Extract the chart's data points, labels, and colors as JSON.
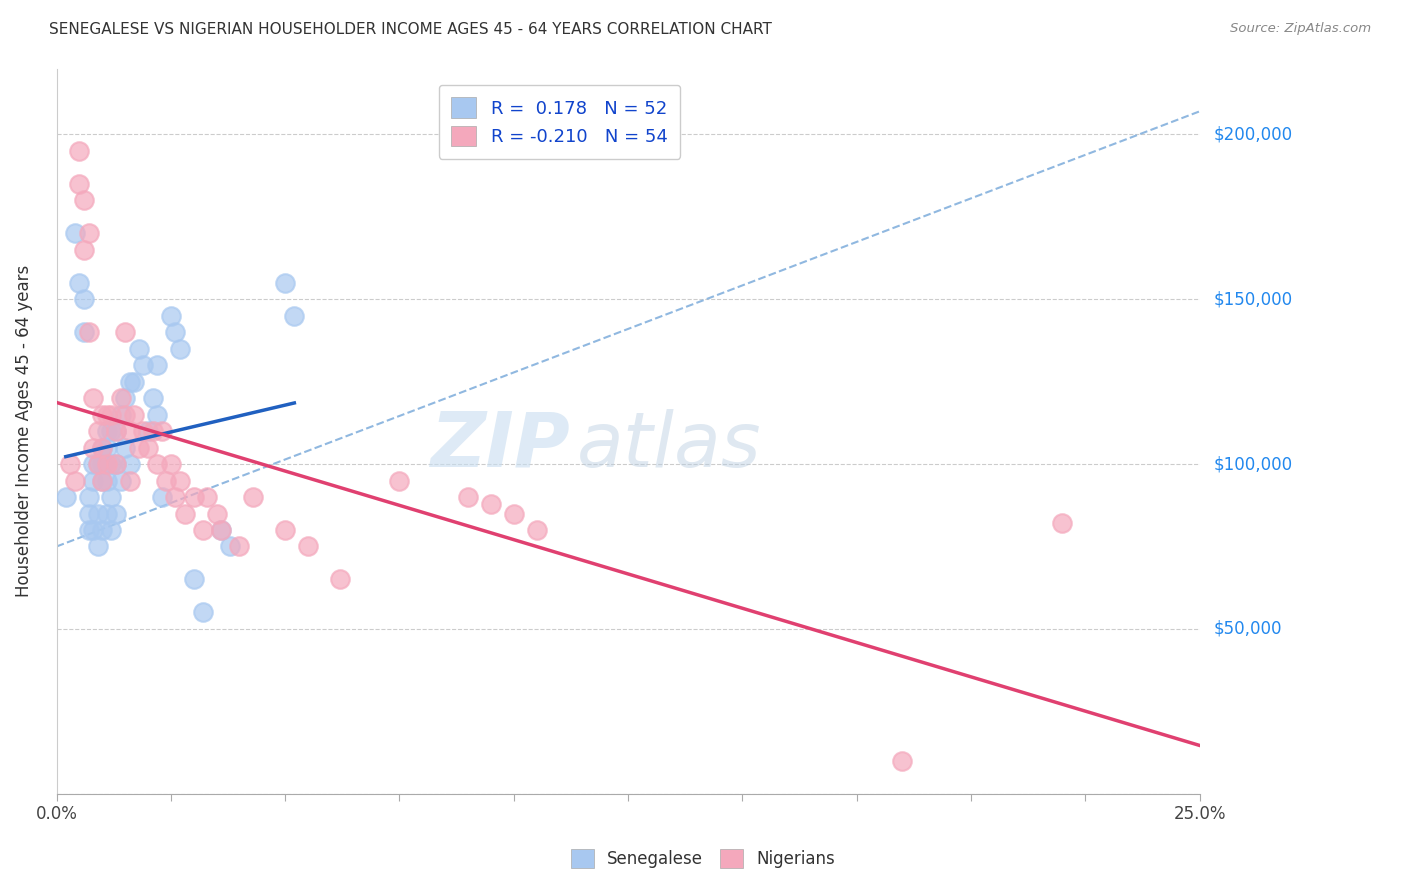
{
  "title": "SENEGALESE VS NIGERIAN HOUSEHOLDER INCOME AGES 45 - 64 YEARS CORRELATION CHART",
  "source": "Source: ZipAtlas.com",
  "ylabel": "Householder Income Ages 45 - 64 years",
  "xlim": [
    0.0,
    0.25
  ],
  "ylim": [
    0,
    220000
  ],
  "ytick_positions": [
    0,
    50000,
    100000,
    150000,
    200000
  ],
  "ytick_labels": [
    "",
    "$50,000",
    "$100,000",
    "$150,000",
    "$200,000"
  ],
  "xtick_positions": [
    0.0,
    0.025,
    0.05,
    0.075,
    0.1,
    0.125,
    0.15,
    0.175,
    0.2,
    0.225,
    0.25
  ],
  "legend_bottom": [
    "Senegalese",
    "Nigerians"
  ],
  "blue_color": "#a8c8f0",
  "pink_color": "#f4a8bc",
  "regression_blue_color": "#2060c0",
  "regression_pink_color": "#e04070",
  "dashed_line_color": "#90b8e0",
  "watermark_zip": "ZIP",
  "watermark_atlas": "atlas",
  "senegalese_x": [
    0.002,
    0.004,
    0.005,
    0.006,
    0.006,
    0.007,
    0.007,
    0.007,
    0.008,
    0.008,
    0.008,
    0.009,
    0.009,
    0.009,
    0.01,
    0.01,
    0.01,
    0.01,
    0.011,
    0.011,
    0.011,
    0.011,
    0.012,
    0.012,
    0.012,
    0.012,
    0.013,
    0.013,
    0.013,
    0.014,
    0.014,
    0.015,
    0.015,
    0.016,
    0.016,
    0.017,
    0.018,
    0.019,
    0.02,
    0.021,
    0.022,
    0.022,
    0.023,
    0.025,
    0.026,
    0.027,
    0.03,
    0.032,
    0.036,
    0.038,
    0.05,
    0.052
  ],
  "senegalese_y": [
    90000,
    170000,
    155000,
    150000,
    140000,
    90000,
    85000,
    80000,
    100000,
    95000,
    80000,
    100000,
    85000,
    75000,
    105000,
    100000,
    95000,
    80000,
    110000,
    105000,
    95000,
    85000,
    110000,
    100000,
    90000,
    80000,
    110000,
    100000,
    85000,
    115000,
    95000,
    120000,
    105000,
    125000,
    100000,
    125000,
    135000,
    130000,
    110000,
    120000,
    130000,
    115000,
    90000,
    145000,
    140000,
    135000,
    65000,
    55000,
    80000,
    75000,
    155000,
    145000
  ],
  "nigerian_x": [
    0.003,
    0.004,
    0.005,
    0.005,
    0.006,
    0.006,
    0.007,
    0.007,
    0.008,
    0.008,
    0.009,
    0.009,
    0.01,
    0.01,
    0.01,
    0.011,
    0.011,
    0.012,
    0.013,
    0.013,
    0.014,
    0.015,
    0.015,
    0.016,
    0.016,
    0.017,
    0.018,
    0.019,
    0.02,
    0.021,
    0.022,
    0.023,
    0.024,
    0.025,
    0.026,
    0.027,
    0.028,
    0.03,
    0.032,
    0.033,
    0.035,
    0.036,
    0.04,
    0.043,
    0.05,
    0.055,
    0.062,
    0.075,
    0.09,
    0.095,
    0.1,
    0.105,
    0.185,
    0.22
  ],
  "nigerian_y": [
    100000,
    95000,
    195000,
    185000,
    180000,
    165000,
    170000,
    140000,
    120000,
    105000,
    110000,
    100000,
    115000,
    105000,
    95000,
    115000,
    100000,
    115000,
    110000,
    100000,
    120000,
    140000,
    115000,
    110000,
    95000,
    115000,
    105000,
    110000,
    105000,
    110000,
    100000,
    110000,
    95000,
    100000,
    90000,
    95000,
    85000,
    90000,
    80000,
    90000,
    85000,
    80000,
    75000,
    90000,
    80000,
    75000,
    65000,
    95000,
    90000,
    88000,
    85000,
    80000,
    10000,
    82000
  ]
}
